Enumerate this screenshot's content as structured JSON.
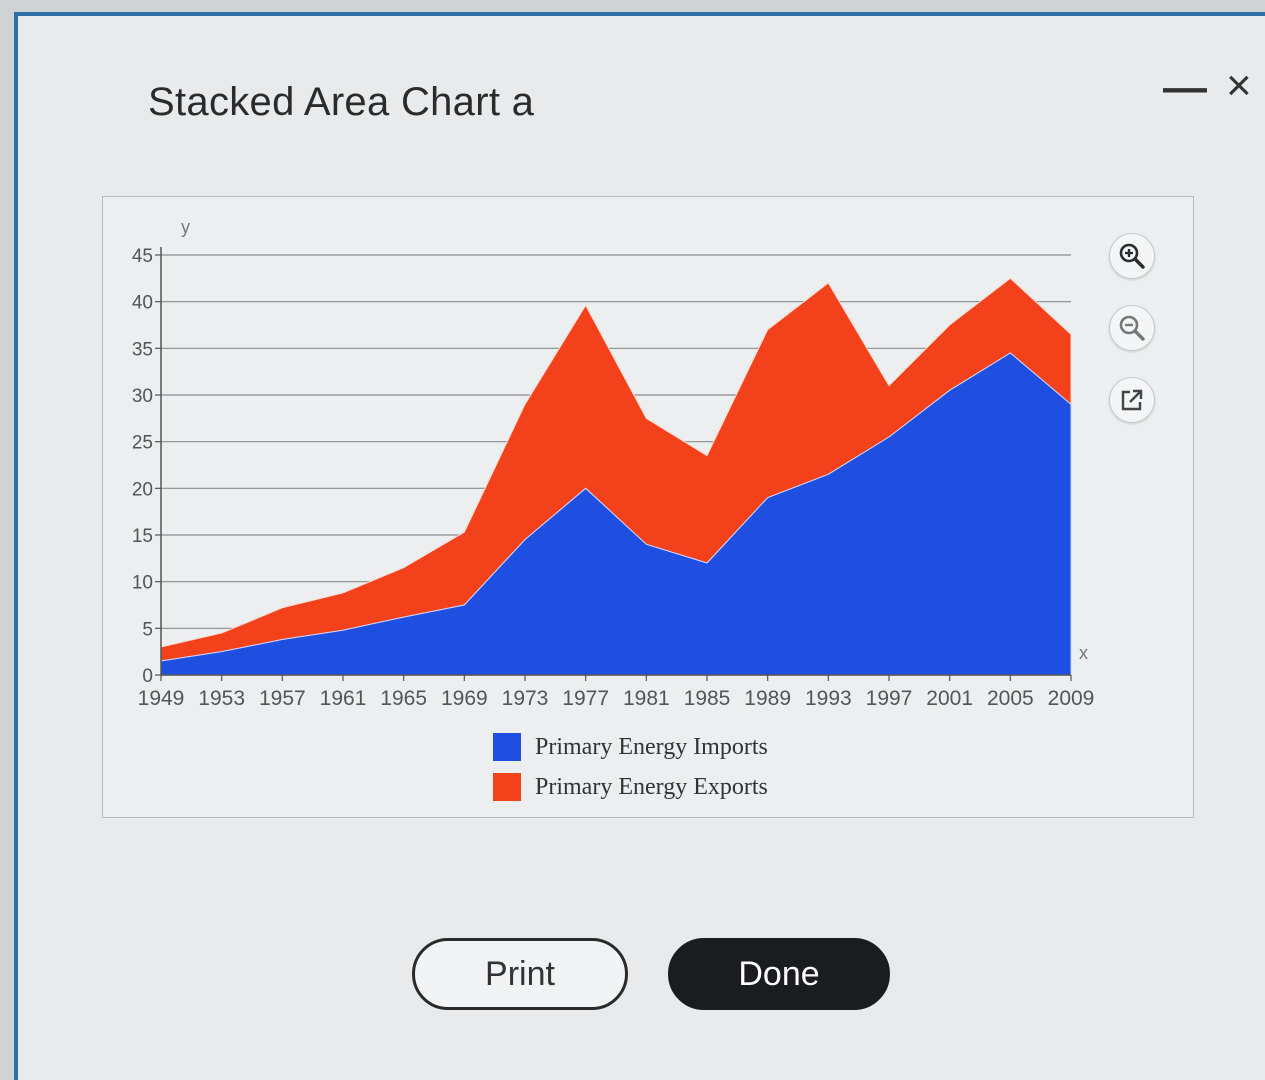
{
  "dialog": {
    "title": "Stacked Area Chart a",
    "minimize_label": "—",
    "close_label": "×"
  },
  "tools": {
    "zoom_in": "zoom-in-icon",
    "zoom_out": "zoom-out-icon",
    "popout": "external-link-icon"
  },
  "buttons": {
    "print_label": "Print",
    "done_label": "Done"
  },
  "colors": {
    "imports": "#1f4fe0",
    "exports": "#f2411b"
  },
  "chart_data": {
    "type": "area",
    "stacked": true,
    "xlabel": "x",
    "ylabel": "y",
    "ylim": [
      0,
      45
    ],
    "yticks": [
      0,
      5,
      10,
      15,
      20,
      25,
      30,
      35,
      40,
      45
    ],
    "x": [
      1949,
      1953,
      1957,
      1961,
      1965,
      1969,
      1973,
      1977,
      1981,
      1985,
      1989,
      1993,
      1997,
      2001,
      2005,
      2009
    ],
    "series": [
      {
        "name": "Primary Energy Imports",
        "values": [
          1.5,
          2.5,
          3.8,
          4.8,
          6.2,
          7.5,
          14.5,
          20.0,
          14.0,
          12.0,
          19.0,
          21.5,
          25.5,
          30.5,
          34.5,
          29.0
        ]
      },
      {
        "name": "Primary Energy Exports",
        "values": [
          1.5,
          2.0,
          3.4,
          4.0,
          5.3,
          7.8,
          14.5,
          19.6,
          13.5,
          11.5,
          18.0,
          20.5,
          5.5,
          7.0,
          8.0,
          7.5
        ]
      }
    ],
    "legend_position": "bottom",
    "grid": true
  }
}
